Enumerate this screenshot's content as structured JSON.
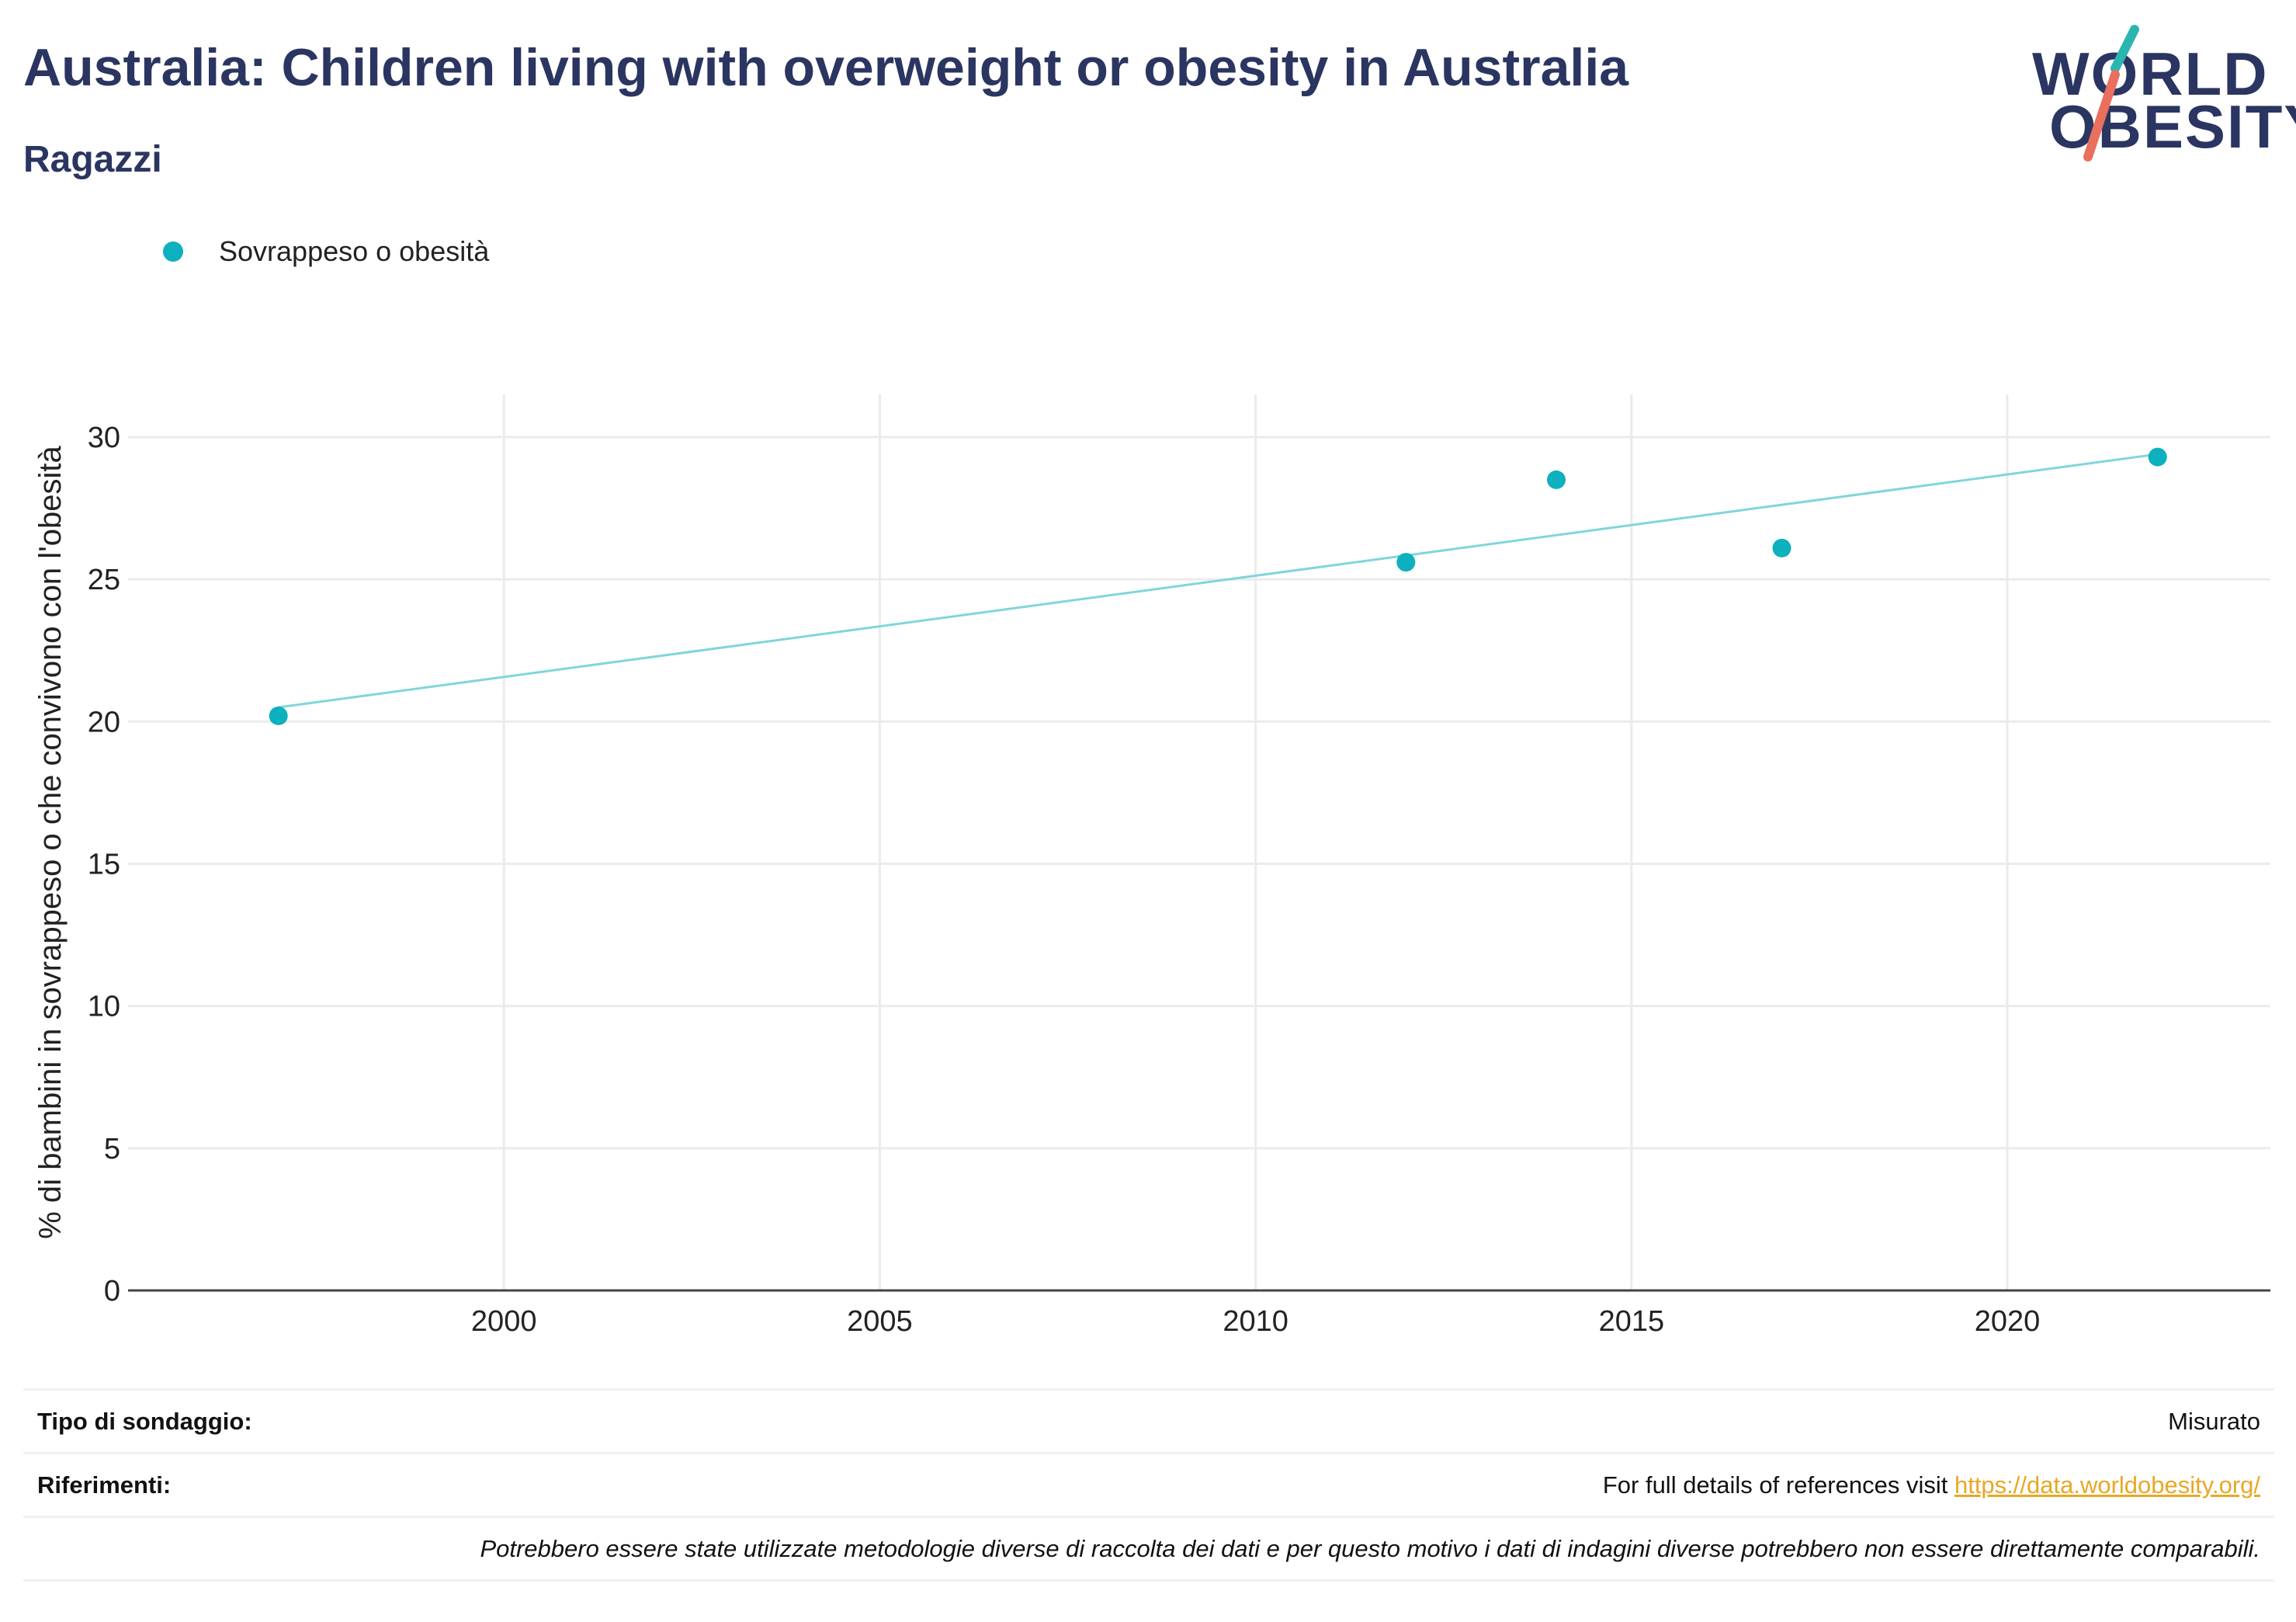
{
  "header": {
    "title": "Australia: Children living with overweight or obesity in Australia",
    "subtitle": "Ragazzi"
  },
  "logo": {
    "line1": "WORLD",
    "line2": "OBESITY",
    "accent_colors": [
      "#2bb5b0",
      "#e8705c"
    ]
  },
  "legend": {
    "label": "Sovrappeso o obesità",
    "color": "#0db0be"
  },
  "chart_data": {
    "type": "scatter",
    "title": "Australia: Children living with overweight or obesity in Australia",
    "subtitle": "Ragazzi",
    "xlabel": "",
    "ylabel": "% di bambini in sovrappeso o che convivono con l'obesità",
    "xlim": [
      1995,
      2023.5
    ],
    "ylim": [
      0,
      31.5
    ],
    "xticks": [
      2000,
      2005,
      2010,
      2015,
      2020
    ],
    "yticks": [
      0,
      5,
      10,
      15,
      20,
      25,
      30
    ],
    "grid": true,
    "legend_position": "top-left",
    "series": [
      {
        "name": "Sovrappeso o obesità",
        "color": "#0db0be",
        "points": [
          {
            "x": 1997,
            "y": 20.2
          },
          {
            "x": 2012,
            "y": 25.6
          },
          {
            "x": 2014,
            "y": 28.5
          },
          {
            "x": 2017,
            "y": 26.1
          },
          {
            "x": 2022,
            "y": 29.3
          }
        ]
      }
    ],
    "trendline": {
      "color": "#7fd6db",
      "start": {
        "x": 1997,
        "y": 20.5
      },
      "end": {
        "x": 2022,
        "y": 29.4
      }
    }
  },
  "footer": {
    "survey_type_label": "Tipo di sondaggio:",
    "survey_type_value": "Misurato",
    "references_label": "Riferimenti:",
    "references_text": "For full details of references visit ",
    "references_link": "https://data.worldobesity.org/",
    "note": "Potrebbero essere state utilizzate metodologie diverse di raccolta dei dati e per questo motivo i dati di indagini diverse potrebbero non essere direttamente comparabili."
  }
}
